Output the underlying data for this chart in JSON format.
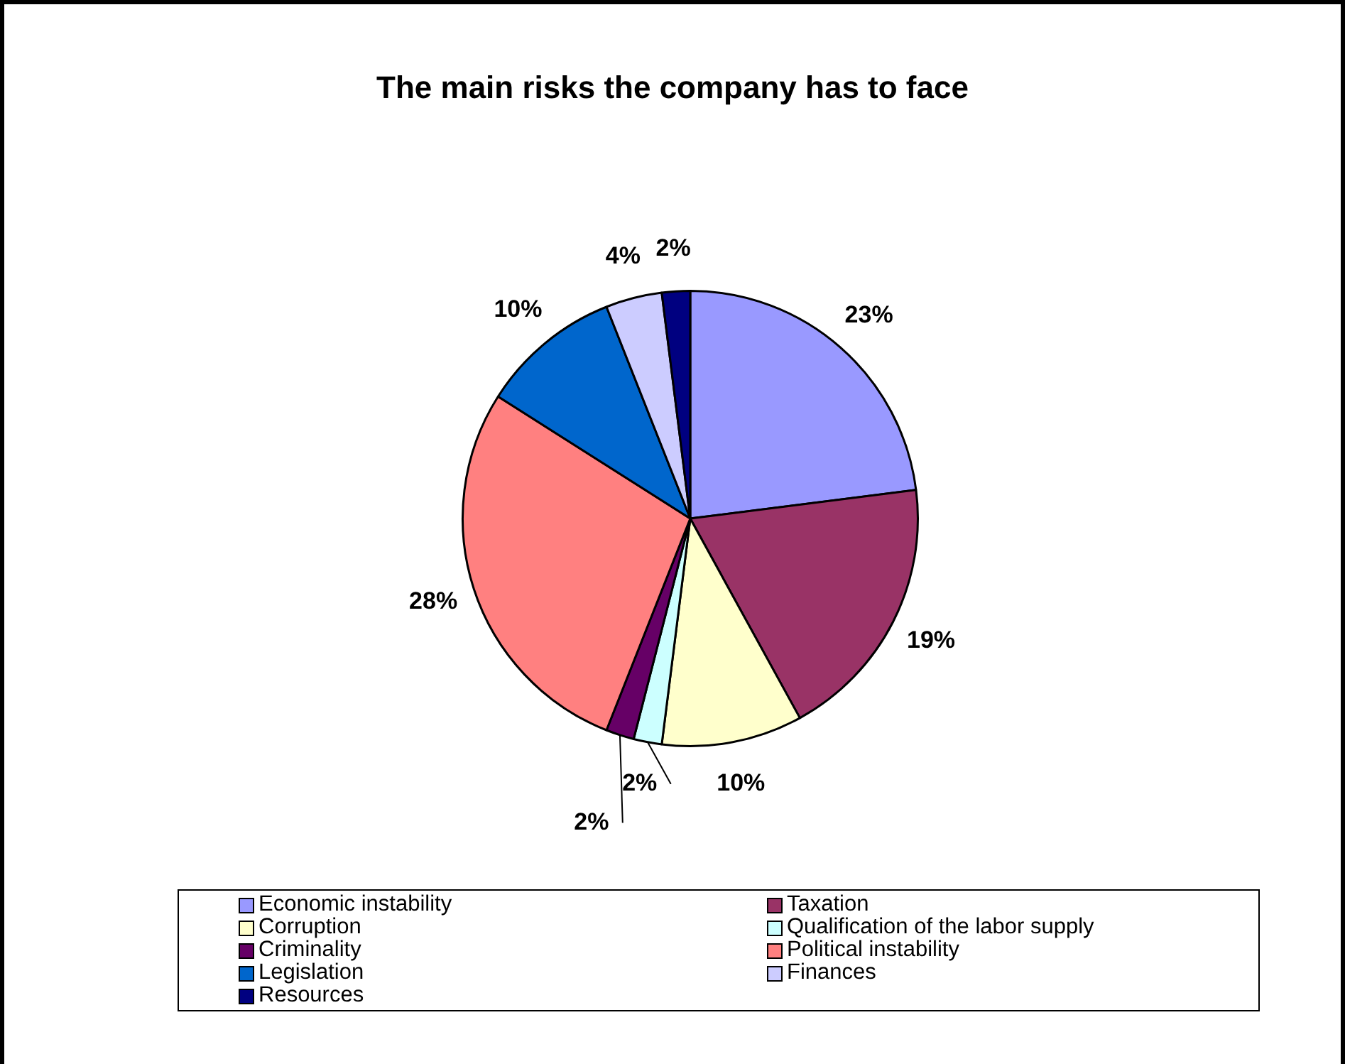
{
  "chart_data": {
    "type": "pie",
    "title": "The main risks the company has to face",
    "categories": [
      "Economic instability",
      "Taxation",
      "Corruption",
      "Qualification of the labor supply",
      "Criminality",
      "Political instability",
      "Legislation",
      "Finances",
      "Resources"
    ],
    "values": [
      23,
      19,
      10,
      2,
      2,
      28,
      10,
      4,
      2
    ],
    "colors": [
      "#9999ff",
      "#993366",
      "#ffffcc",
      "#ccffff",
      "#660066",
      "#ff8080",
      "#0066cc",
      "#ccccff",
      "#000080"
    ],
    "value_labels": [
      "23%",
      "19%",
      "10%",
      "2%",
      "2%",
      "28%",
      "10%",
      "4%",
      "2%"
    ],
    "legend": "bottom"
  }
}
